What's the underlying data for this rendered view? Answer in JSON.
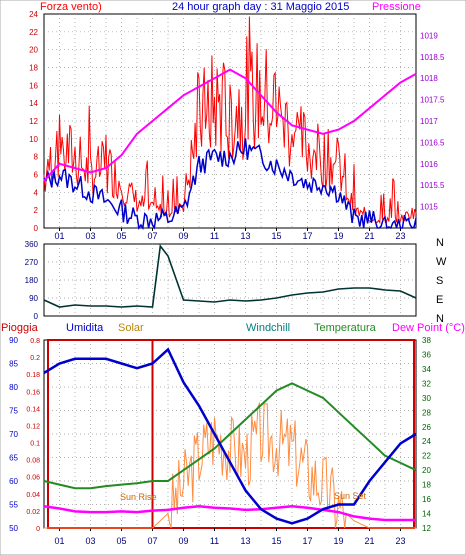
{
  "colors": {
    "wind": "#ff0000",
    "wind_avg": "#0000cc",
    "pressure": "#ff00ff",
    "direction": "#003333",
    "humidity": "#0000cc",
    "solar": "#ff8c40",
    "temperature": "#228b22",
    "dewpoint": "#ff00ff",
    "rain": "#cc0000",
    "windchill": "#008080",
    "grid": "#999999",
    "frame": "#000000"
  },
  "panel1": {
    "title": "24 hour graph day : 31 Maggio 2015",
    "left_label": "Forza vento)",
    "right_label": "Pressione"
  },
  "panel2": {
    "direction_labels": [
      "N",
      "W",
      "S",
      "E",
      "N"
    ]
  },
  "panel3": {
    "labels": {
      "rain": "Pioggia",
      "humidity": "Umidita",
      "solar": "Solar",
      "windchill": "Windchill",
      "temperature": "Temperatura",
      "dewpoint": "Dew Point (°C)"
    },
    "annotations": {
      "sunrise": "Sun Rise",
      "sunset": "Sun Set"
    }
  },
  "chart_data": [
    {
      "type": "line",
      "title": "24 hour graph day : 31 Maggio 2015",
      "x_ticks": [
        "01",
        "03",
        "05",
        "07",
        "09",
        "11",
        "13",
        "15",
        "17",
        "19",
        "21",
        "23"
      ],
      "x": [
        0,
        1,
        2,
        3,
        4,
        5,
        6,
        7,
        8,
        9,
        10,
        11,
        12,
        13,
        14,
        15,
        16,
        17,
        18,
        19,
        20,
        21,
        22,
        23,
        24
      ],
      "y_left": {
        "label": "Forza vento)",
        "ylim": [
          0,
          24
        ],
        "ticks": [
          0,
          2,
          4,
          6,
          8,
          10,
          12,
          14,
          16,
          18,
          20,
          22,
          24
        ]
      },
      "y_right": {
        "label": "Pressione",
        "ylim": [
          1014.5,
          1019.5
        ],
        "ticks": [
          1015,
          1015.5,
          1016,
          1016.5,
          1017,
          1017.5,
          1018,
          1018.5,
          1019
        ]
      },
      "series": [
        {
          "name": "Forza vento)",
          "axis": "left",
          "values": [
            6,
            9,
            8,
            6,
            7,
            5,
            3,
            2,
            2,
            3,
            12,
            14,
            13,
            14,
            15,
            13,
            11,
            9,
            8,
            7,
            2,
            1,
            1,
            1,
            2
          ]
        },
        {
          "axis": "left",
          "values": [
            5,
            6,
            5,
            4,
            3,
            2,
            1,
            1,
            1,
            2,
            7,
            8,
            8,
            9,
            8,
            7,
            6,
            5,
            5,
            4,
            1,
            1,
            0,
            0,
            1
          ]
        },
        {
          "name": "Pressione",
          "axis": "right",
          "values": [
            1015.6,
            1016.0,
            1015.9,
            1015.8,
            1015.9,
            1016.2,
            1016.7,
            1017.0,
            1017.3,
            1017.6,
            1017.8,
            1018.0,
            1018.2,
            1018.0,
            1017.6,
            1017.2,
            1016.9,
            1016.8,
            1016.7,
            1016.8,
            1017.0,
            1017.3,
            1017.6,
            1017.9,
            1018.1
          ]
        }
      ]
    },
    {
      "type": "line",
      "x": [
        0,
        1,
        2,
        3,
        4,
        5,
        6,
        7,
        7.5,
        8,
        9,
        10,
        11,
        12,
        13,
        14,
        15,
        16,
        17,
        18,
        19,
        20,
        21,
        22,
        23,
        24
      ],
      "y_labels": [
        "N",
        "W",
        "S",
        "E",
        "N"
      ],
      "ylim": [
        0,
        360
      ],
      "y_ticks": [
        0,
        90,
        180,
        270,
        360
      ],
      "series": [
        {
          "values": [
            80,
            45,
            55,
            50,
            50,
            45,
            50,
            45,
            350,
            300,
            80,
            75,
            70,
            80,
            75,
            80,
            90,
            105,
            115,
            120,
            135,
            140,
            140,
            130,
            125,
            90
          ]
        }
      ]
    },
    {
      "type": "line",
      "x_ticks": [
        "01",
        "03",
        "05",
        "07",
        "09",
        "11",
        "13",
        "15",
        "17",
        "19",
        "21",
        "23"
      ],
      "x": [
        0,
        1,
        2,
        3,
        4,
        5,
        6,
        7,
        8,
        9,
        10,
        11,
        12,
        13,
        14,
        15,
        16,
        17,
        18,
        19,
        20,
        21,
        22,
        23,
        24
      ],
      "y_left": {
        "label": "Umidita",
        "ylim": [
          50,
          90
        ],
        "ticks": [
          50,
          55,
          60,
          65,
          70,
          75,
          80,
          85,
          90
        ]
      },
      "y_rain": {
        "label": "Pioggia",
        "ylim": [
          0,
          0.8
        ],
        "ticks": [
          0,
          0.02,
          0.04,
          0.06,
          0.08,
          0.1,
          0.12,
          0.14,
          0.16,
          0.18,
          0.2,
          0.8
        ]
      },
      "y_right": {
        "label": "Dew Point (°C)",
        "ylim": [
          12,
          38
        ],
        "ticks": [
          12,
          14,
          16,
          18,
          20,
          22,
          24,
          26,
          28,
          30,
          32,
          34,
          36,
          38
        ]
      },
      "series": [
        {
          "name": "Umidita",
          "axis": "left",
          "values": [
            83,
            85,
            86,
            86,
            86,
            85,
            84,
            85,
            88,
            81,
            76,
            70,
            64,
            58,
            54,
            52,
            51,
            52,
            54,
            55,
            55,
            60,
            64,
            68,
            70
          ]
        },
        {
          "name": "Temperatura",
          "axis": "right",
          "values": [
            18.5,
            18,
            17.5,
            17.5,
            17.8,
            18,
            18.2,
            18.5,
            18.5,
            20,
            21.5,
            23,
            25,
            27,
            29,
            31,
            32,
            31,
            30,
            28,
            26,
            24,
            22,
            21,
            20
          ]
        },
        {
          "name": "Dew Point (°C)",
          "axis": "right",
          "values": [
            15,
            14.7,
            14.3,
            14.2,
            14.2,
            14.3,
            14.2,
            14.4,
            14.5,
            14.8,
            15,
            14.8,
            14.7,
            14.5,
            14.6,
            14.8,
            15,
            14.8,
            14.5,
            14.2,
            13.6,
            13.3,
            13.1,
            13.1,
            13.1
          ]
        },
        {
          "name": "Solar",
          "axis": "right",
          "values": [
            12,
            12,
            12,
            12,
            12,
            12,
            12,
            12,
            14,
            18,
            22,
            25,
            23,
            22,
            25,
            24,
            23,
            20,
            18,
            15,
            13,
            12,
            12,
            12,
            12
          ]
        }
      ],
      "events": [
        {
          "label": "Sun Rise",
          "x": 6.5
        },
        {
          "label": "Sun Set",
          "x": 20.0
        }
      ]
    }
  ]
}
